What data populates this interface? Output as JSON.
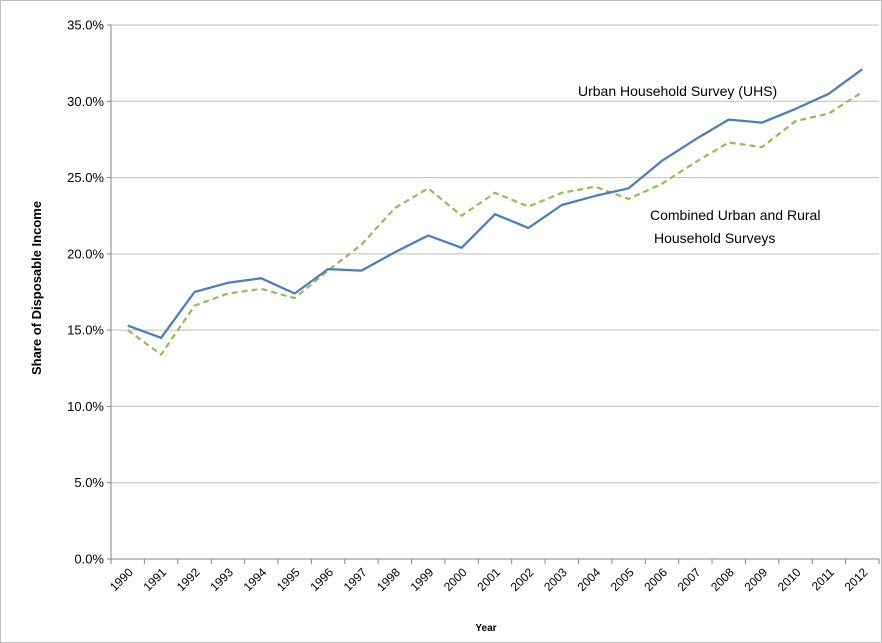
{
  "chart_data": {
    "type": "line",
    "title": "",
    "xlabel": "Year",
    "ylabel": "Share of Disposable Income",
    "ylim": [
      0,
      35
    ],
    "y_ticks": [
      "0.0%",
      "5.0%",
      "10.0%",
      "15.0%",
      "20.0%",
      "25.0%",
      "30.0%",
      "35.0%"
    ],
    "y_tick_values": [
      0,
      5,
      10,
      15,
      20,
      25,
      30,
      35
    ],
    "grid": "horizontal",
    "categories": [
      "1990",
      "1991",
      "1992",
      "1993",
      "1994",
      "1995",
      "1996",
      "1997",
      "1998",
      "1999",
      "2000",
      "2001",
      "2002",
      "2003",
      "2004",
      "2005",
      "2006",
      "2007",
      "2008",
      "2009",
      "2010",
      "2011",
      "2012"
    ],
    "series": [
      {
        "name": "Urban Household Survey (UHS)",
        "color": "#4a7ebb",
        "style": "solid",
        "values": [
          15.3,
          14.5,
          17.5,
          18.1,
          18.4,
          17.4,
          19.0,
          18.9,
          20.1,
          21.2,
          20.4,
          22.6,
          21.7,
          23.2,
          23.8,
          24.3,
          26.1,
          27.5,
          28.8,
          28.6,
          29.5,
          30.5,
          32.1
        ]
      },
      {
        "name": "Combined Urban and Rural Household Surveys",
        "color": "#9bbb59",
        "style": "dashed",
        "values": [
          15.0,
          13.4,
          16.6,
          17.4,
          17.7,
          17.1,
          18.9,
          20.6,
          23.0,
          24.3,
          22.5,
          24.0,
          23.1,
          24.0,
          24.4,
          23.6,
          24.6,
          26.0,
          27.3,
          27.0,
          28.7,
          29.2,
          30.6
        ]
      }
    ],
    "annotations": [
      {
        "text": "Urban Household Survey (UHS)"
      },
      {
        "lines": [
          "Combined Urban and Rural",
          "Household Surveys"
        ]
      }
    ]
  }
}
